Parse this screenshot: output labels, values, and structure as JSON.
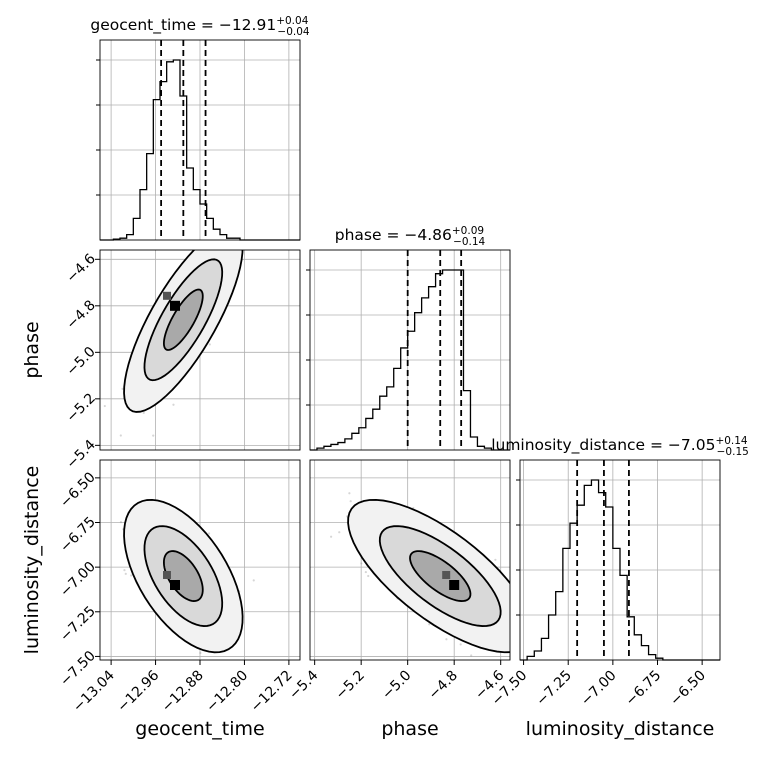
{
  "chart_data": {
    "type": "corner",
    "parameters": [
      "geocent_time",
      "phase",
      "luminosity_distance"
    ],
    "titles": [
      {
        "label": "geocent_time",
        "median": "−12.91",
        "plus": "+0.04",
        "minus": "−0.04"
      },
      {
        "label": "phase",
        "median": "−4.86",
        "plus": "+0.09",
        "minus": "−0.14"
      },
      {
        "label": "luminosity_distance",
        "median": "−7.05",
        "plus": "+0.14",
        "minus": "−0.15"
      }
    ],
    "axes": {
      "geocent_time": {
        "range": [
          -13.06,
          -12.7
        ],
        "ticks": [
          -13.04,
          -12.96,
          -12.88,
          -12.8,
          -12.72
        ],
        "tick_labels": [
          "−13.04",
          "−12.96",
          "−12.88",
          "−12.80",
          "−12.72"
        ]
      },
      "phase": {
        "range": [
          -5.42,
          -4.56
        ],
        "ticks": [
          -5.4,
          -5.2,
          -5.0,
          -4.8,
          -4.6
        ],
        "tick_labels": [
          "−5.4",
          "−5.2",
          "−5.0",
          "−4.8",
          "−4.6"
        ]
      },
      "luminosity_distance": {
        "range": [
          -7.52,
          -6.4
        ],
        "ticks": [
          -7.5,
          -7.25,
          -7.0,
          -6.75,
          -6.5
        ],
        "tick_labels": [
          "−7.50",
          "−7.25",
          "−7.00",
          "−6.75",
          "−6.50"
        ]
      }
    },
    "histograms": [
      {
        "parameter": "geocent_time",
        "bin_edges": [
          -13.06,
          -13.048,
          -13.036,
          -13.024,
          -13.012,
          -13.0,
          -12.988,
          -12.976,
          -12.964,
          -12.952,
          -12.94,
          -12.928,
          -12.916,
          -12.904,
          -12.892,
          -12.88,
          -12.868,
          -12.856,
          -12.844,
          -12.832,
          -12.82,
          -12.808,
          -12.796,
          -12.784,
          -12.772,
          -12.76,
          -12.748,
          -12.736,
          -12.724,
          -12.712,
          -12.7
        ],
        "counts": [
          0,
          0,
          0.5,
          1,
          3,
          12,
          28,
          48,
          78,
          88,
          99,
          100,
          80,
          40,
          28,
          20,
          12,
          6,
          3,
          1,
          1,
          0,
          0,
          0,
          0,
          0,
          0,
          0,
          0,
          0
        ],
        "quantiles": [
          -12.95,
          -12.91,
          -12.87
        ]
      },
      {
        "parameter": "phase",
        "bin_edges": [
          -5.42,
          -5.39,
          -5.36,
          -5.33,
          -5.3,
          -5.27,
          -5.24,
          -5.21,
          -5.18,
          -5.15,
          -5.12,
          -5.09,
          -5.06,
          -5.03,
          -5.0,
          -4.97,
          -4.94,
          -4.91,
          -4.88,
          -4.85,
          -4.82,
          -4.79,
          -4.76,
          -4.73,
          -4.7,
          -4.67,
          -4.64,
          -4.61,
          -4.58,
          -4.56
        ],
        "counts": [
          0,
          1,
          2,
          3,
          4,
          6,
          9,
          12,
          17,
          22,
          29,
          34,
          44,
          55,
          64,
          74,
          82,
          88,
          95,
          97,
          97,
          97,
          32,
          7,
          2,
          1,
          0,
          0,
          0
        ],
        "quantiles": [
          -5.0,
          -4.86,
          -4.77
        ]
      },
      {
        "parameter": "luminosity_distance",
        "bin_edges": [
          -7.52,
          -7.48,
          -7.44,
          -7.4,
          -7.36,
          -7.32,
          -7.28,
          -7.24,
          -7.2,
          -7.16,
          -7.12,
          -7.08,
          -7.04,
          -7.0,
          -6.96,
          -6.92,
          -6.88,
          -6.84,
          -6.8,
          -6.76,
          -6.72,
          -6.68,
          -6.64,
          -6.6,
          -6.56,
          -6.52,
          -6.48,
          -6.44,
          -6.4
        ],
        "counts": [
          0,
          2,
          5,
          12,
          25,
          38,
          62,
          76,
          86,
          97,
          100,
          93,
          85,
          62,
          47,
          24,
          14,
          8,
          3,
          1,
          0,
          0,
          0,
          0,
          0,
          0,
          0,
          0
        ],
        "quantiles": [
          -7.2,
          -7.05,
          -6.91
        ]
      }
    ],
    "joint": [
      {
        "x": "geocent_time",
        "y": "phase",
        "mean": [
          -12.91,
          -4.86
        ],
        "sd": [
          0.035,
          0.13
        ],
        "corr": 0.78,
        "peak": [
          -12.925,
          -4.8
        ]
      },
      {
        "x": "geocent_time",
        "y": "luminosity_distance",
        "mean": [
          -12.91,
          -7.05
        ],
        "sd": [
          0.035,
          0.14
        ],
        "corr": -0.55,
        "peak": [
          -12.925,
          -7.1
        ]
      },
      {
        "x": "phase",
        "y": "luminosity_distance",
        "mean": [
          -4.86,
          -7.05
        ],
        "sd": [
          0.13,
          0.14
        ],
        "corr": -0.72,
        "peak": [
          -4.8,
          -7.1
        ]
      }
    ],
    "levels": [
      "39%",
      "86%",
      "99%"
    ],
    "grid": true
  }
}
